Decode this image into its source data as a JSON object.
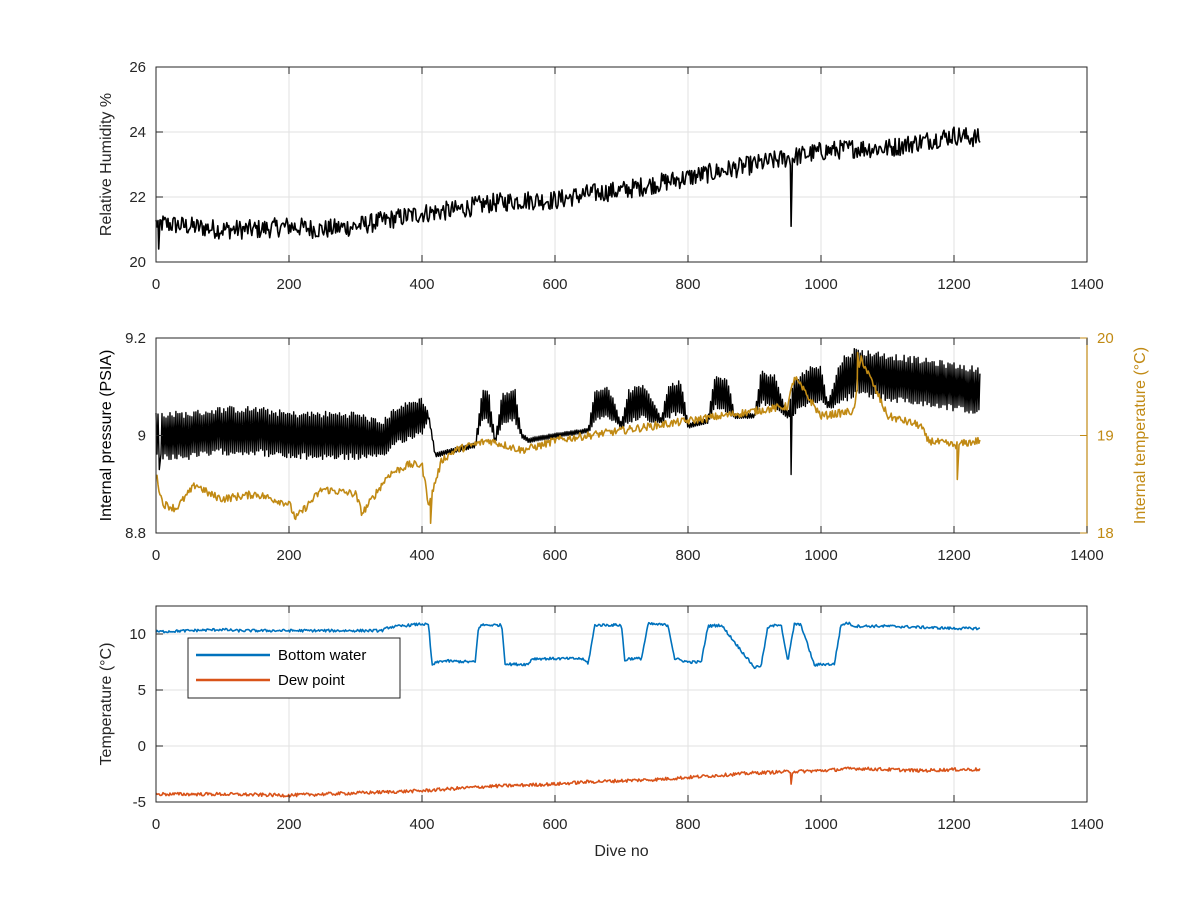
{
  "chart_data": [
    {
      "type": "line",
      "title": "",
      "xlabel": "",
      "ylabel": "Relative Humidity %",
      "xlim": [
        0,
        1400
      ],
      "ylim": [
        20,
        26
      ],
      "xticks": [
        0,
        200,
        400,
        600,
        800,
        1000,
        1200,
        1400
      ],
      "yticks": [
        20,
        22,
        24,
        26
      ],
      "grid": true,
      "series": [
        {
          "color": "#000000",
          "noise": 0.3,
          "x": [
            0,
            50,
            100,
            150,
            200,
            250,
            300,
            350,
            400,
            450,
            500,
            550,
            600,
            650,
            700,
            750,
            800,
            850,
            900,
            950,
            1000,
            1050,
            1100,
            1150,
            1200,
            1240
          ],
          "y": [
            21.2,
            21.1,
            21.0,
            21.0,
            21.1,
            21.0,
            21.1,
            21.3,
            21.5,
            21.6,
            21.8,
            21.9,
            21.9,
            22.1,
            22.2,
            22.4,
            22.6,
            22.8,
            23.0,
            23.2,
            23.4,
            23.5,
            23.5,
            23.7,
            23.9,
            23.8
          ],
          "spikes": [
            {
              "x": 955,
              "y": 21.1
            },
            {
              "x": 4,
              "y": 20.4
            }
          ]
        }
      ]
    },
    {
      "type": "line",
      "title": "",
      "xlabel": "",
      "ylabel": "Internal pressure (PSIA)",
      "ylabel_right": "Internal temperature (°C)",
      "xlim": [
        0,
        1400
      ],
      "ylim": [
        8.8,
        9.2
      ],
      "ylim_right": [
        18,
        20
      ],
      "xticks": [
        0,
        200,
        400,
        600,
        800,
        1000,
        1200,
        1400
      ],
      "yticks": [
        8.8,
        9,
        9.2
      ],
      "yticks_right": [
        18,
        19,
        20
      ],
      "grid": true,
      "series": [
        {
          "color": "#000000",
          "axis": "left",
          "x": [
            0,
            50,
            100,
            150,
            200,
            250,
            300,
            340,
            360,
            380,
            400,
            410,
            420,
            450,
            480,
            490,
            500,
            510,
            520,
            530,
            540,
            550,
            560,
            600,
            650,
            660,
            680,
            700,
            710,
            730,
            740,
            760,
            770,
            790,
            800,
            830,
            840,
            860,
            870,
            900,
            910,
            930,
            950,
            960,
            980,
            1000,
            1010,
            1030,
            1050,
            1100,
            1150,
            1200,
            1240
          ],
          "y": [
            9.0,
            9.0,
            9.01,
            9.01,
            9.0,
            9.0,
            9.0,
            8.99,
            9.02,
            9.03,
            9.04,
            9.04,
            8.96,
            8.97,
            8.98,
            9.06,
            9.06,
            8.99,
            9.05,
            9.06,
            9.06,
            9.0,
            8.99,
            9.0,
            9.01,
            9.06,
            9.07,
            9.02,
            9.06,
            9.07,
            9.06,
            9.03,
            9.07,
            9.08,
            9.02,
            9.03,
            9.09,
            9.08,
            9.04,
            9.04,
            9.1,
            9.09,
            9.04,
            9.08,
            9.1,
            9.11,
            9.06,
            9.11,
            9.13,
            9.12,
            9.11,
            9.1,
            9.09
          ],
          "band": [
            0.05,
            0.05,
            0.05,
            0.05,
            0.05,
            0.05,
            0.05,
            0.04,
            0.04,
            0.04,
            0.04,
            0.005,
            0.005,
            0.005,
            0.005,
            0.035,
            0.035,
            0.005,
            0.035,
            0.035,
            0.035,
            0.005,
            0.005,
            0.005,
            0.005,
            0.035,
            0.035,
            0.005,
            0.035,
            0.035,
            0.035,
            0.005,
            0.035,
            0.035,
            0.005,
            0.005,
            0.035,
            0.035,
            0.005,
            0.005,
            0.035,
            0.035,
            0.005,
            0.04,
            0.04,
            0.04,
            0.005,
            0.05,
            0.05,
            0.05,
            0.05,
            0.05,
            0.05
          ],
          "spikes": [
            {
              "x": 955,
              "y": 8.92
            },
            {
              "x": 5,
              "y": 8.93
            }
          ]
        },
        {
          "color": "#C18A14",
          "axis": "right",
          "noise": 0.04,
          "x": [
            0,
            10,
            30,
            60,
            80,
            100,
            150,
            200,
            210,
            250,
            300,
            310,
            350,
            380,
            400,
            410,
            430,
            450,
            500,
            550,
            580,
            600,
            650,
            700,
            750,
            800,
            850,
            900,
            950,
            960,
            1000,
            1050,
            1060,
            1100,
            1150,
            1160,
            1200,
            1240
          ],
          "y": [
            18.6,
            18.3,
            18.25,
            18.5,
            18.4,
            18.35,
            18.4,
            18.3,
            18.15,
            18.45,
            18.4,
            18.2,
            18.6,
            18.7,
            18.7,
            18.3,
            18.75,
            18.85,
            18.95,
            18.85,
            18.9,
            18.95,
            19.0,
            19.05,
            19.1,
            19.15,
            19.2,
            19.25,
            19.3,
            19.6,
            19.2,
            19.25,
            19.8,
            19.2,
            19.1,
            18.95,
            18.9,
            18.95
          ],
          "spikes": [
            {
              "x": 1055,
              "y": 19.85
            },
            {
              "x": 413,
              "y": 18.1
            },
            {
              "x": 1205,
              "y": 18.55
            }
          ]
        }
      ]
    },
    {
      "type": "line",
      "title": "",
      "xlabel": "Dive no",
      "ylabel": "Temperature (°C)",
      "xlim": [
        0,
        1400
      ],
      "ylim": [
        -5,
        12.5
      ],
      "xticks": [
        0,
        200,
        400,
        600,
        800,
        1000,
        1200,
        1400
      ],
      "yticks": [
        -5,
        0,
        5,
        10
      ],
      "grid": true,
      "legend": {
        "placement": "top-left"
      },
      "series": [
        {
          "name": "Bottom water",
          "color": "#0072BD",
          "noise": 0.12,
          "x": [
            0,
            100,
            120,
            340,
            350,
            400,
            410,
            415,
            420,
            430,
            480,
            485,
            490,
            520,
            525,
            530,
            560,
            565,
            640,
            650,
            660,
            700,
            705,
            710,
            730,
            740,
            770,
            780,
            800,
            820,
            830,
            850,
            900,
            910,
            920,
            940,
            950,
            960,
            970,
            990,
            1000,
            1020,
            1030,
            1040,
            1050,
            1100,
            1200,
            1240
          ],
          "y": [
            10.2,
            10.4,
            10.3,
            10.3,
            10.6,
            10.9,
            10.8,
            7.2,
            7.4,
            7.6,
            7.5,
            10.6,
            10.8,
            10.8,
            7.4,
            7.3,
            7.3,
            7.8,
            7.8,
            7.4,
            10.8,
            10.8,
            7.6,
            7.8,
            7.8,
            10.9,
            10.8,
            7.8,
            7.5,
            7.5,
            10.7,
            10.8,
            7.0,
            7.2,
            10.6,
            10.9,
            7.5,
            10.9,
            10.8,
            7.2,
            7.3,
            7.3,
            10.8,
            11.0,
            10.7,
            10.7,
            10.5,
            10.5
          ]
        },
        {
          "name": "Dew point",
          "color": "#D95319",
          "noise": 0.15,
          "x": [
            0,
            100,
            200,
            250,
            300,
            350,
            400,
            450,
            500,
            550,
            600,
            650,
            700,
            750,
            800,
            850,
            900,
            950,
            1000,
            1050,
            1100,
            1150,
            1200,
            1240
          ],
          "y": [
            -4.3,
            -4.3,
            -4.4,
            -4.3,
            -4.2,
            -4.1,
            -4.0,
            -3.8,
            -3.6,
            -3.5,
            -3.4,
            -3.2,
            -3.1,
            -3.0,
            -2.8,
            -2.6,
            -2.4,
            -2.3,
            -2.2,
            -2.0,
            -2.1,
            -2.2,
            -2.1,
            -2.1
          ],
          "spikes": [
            {
              "x": 955,
              "y": -3.4
            }
          ]
        }
      ]
    }
  ]
}
